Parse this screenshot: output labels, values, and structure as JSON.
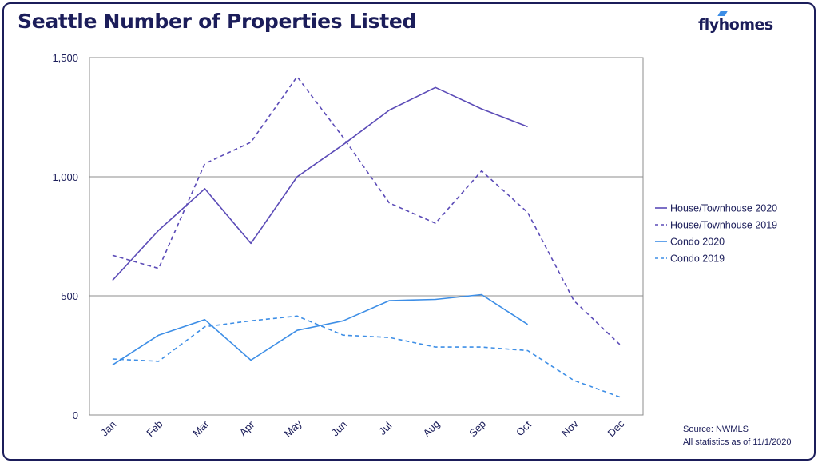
{
  "title": "Seattle Number of Properties Listed",
  "logo_text": "flyhomes",
  "source": {
    "line1": "Source: NWMLS",
    "line2": "All statistics as of 11/1/2020"
  },
  "colors": {
    "frame": "#1b1d5a",
    "text": "#1b1d5a",
    "house": "#5b4bb7",
    "condo": "#3d8ee6",
    "grid": "#8c8c8c"
  },
  "chart_data": {
    "type": "line",
    "title": "Seattle Number of Properties Listed",
    "categories": [
      "Jan",
      "Feb",
      "Mar",
      "Apr",
      "May",
      "Jun",
      "Jul",
      "Aug",
      "Sep",
      "Oct",
      "Nov",
      "Dec"
    ],
    "ylim": [
      0,
      1500
    ],
    "yticks": [
      0,
      500,
      1000,
      1500
    ],
    "ytick_labels": [
      "0",
      "500",
      "1,000",
      "1,500"
    ],
    "grid": "horizontal",
    "legend_position": "right",
    "series": [
      {
        "name": "House/Townhouse 2020",
        "style": "solid",
        "color": "#5b4bb7",
        "values": [
          565,
          775,
          950,
          720,
          1000,
          1135,
          1280,
          1375,
          1285,
          1210,
          null,
          null
        ]
      },
      {
        "name": "House/Townhouse 2019",
        "style": "dashed",
        "color": "#5b4bb7",
        "values": [
          670,
          615,
          1055,
          1145,
          1420,
          1165,
          890,
          805,
          1025,
          850,
          480,
          295
        ]
      },
      {
        "name": "Condo 2020",
        "style": "solid",
        "color": "#3d8ee6",
        "values": [
          210,
          335,
          400,
          230,
          355,
          395,
          480,
          485,
          505,
          380,
          null,
          null
        ]
      },
      {
        "name": "Condo 2019",
        "style": "dashed",
        "color": "#3d8ee6",
        "values": [
          235,
          225,
          370,
          395,
          415,
          335,
          325,
          285,
          285,
          270,
          145,
          75
        ]
      }
    ]
  }
}
